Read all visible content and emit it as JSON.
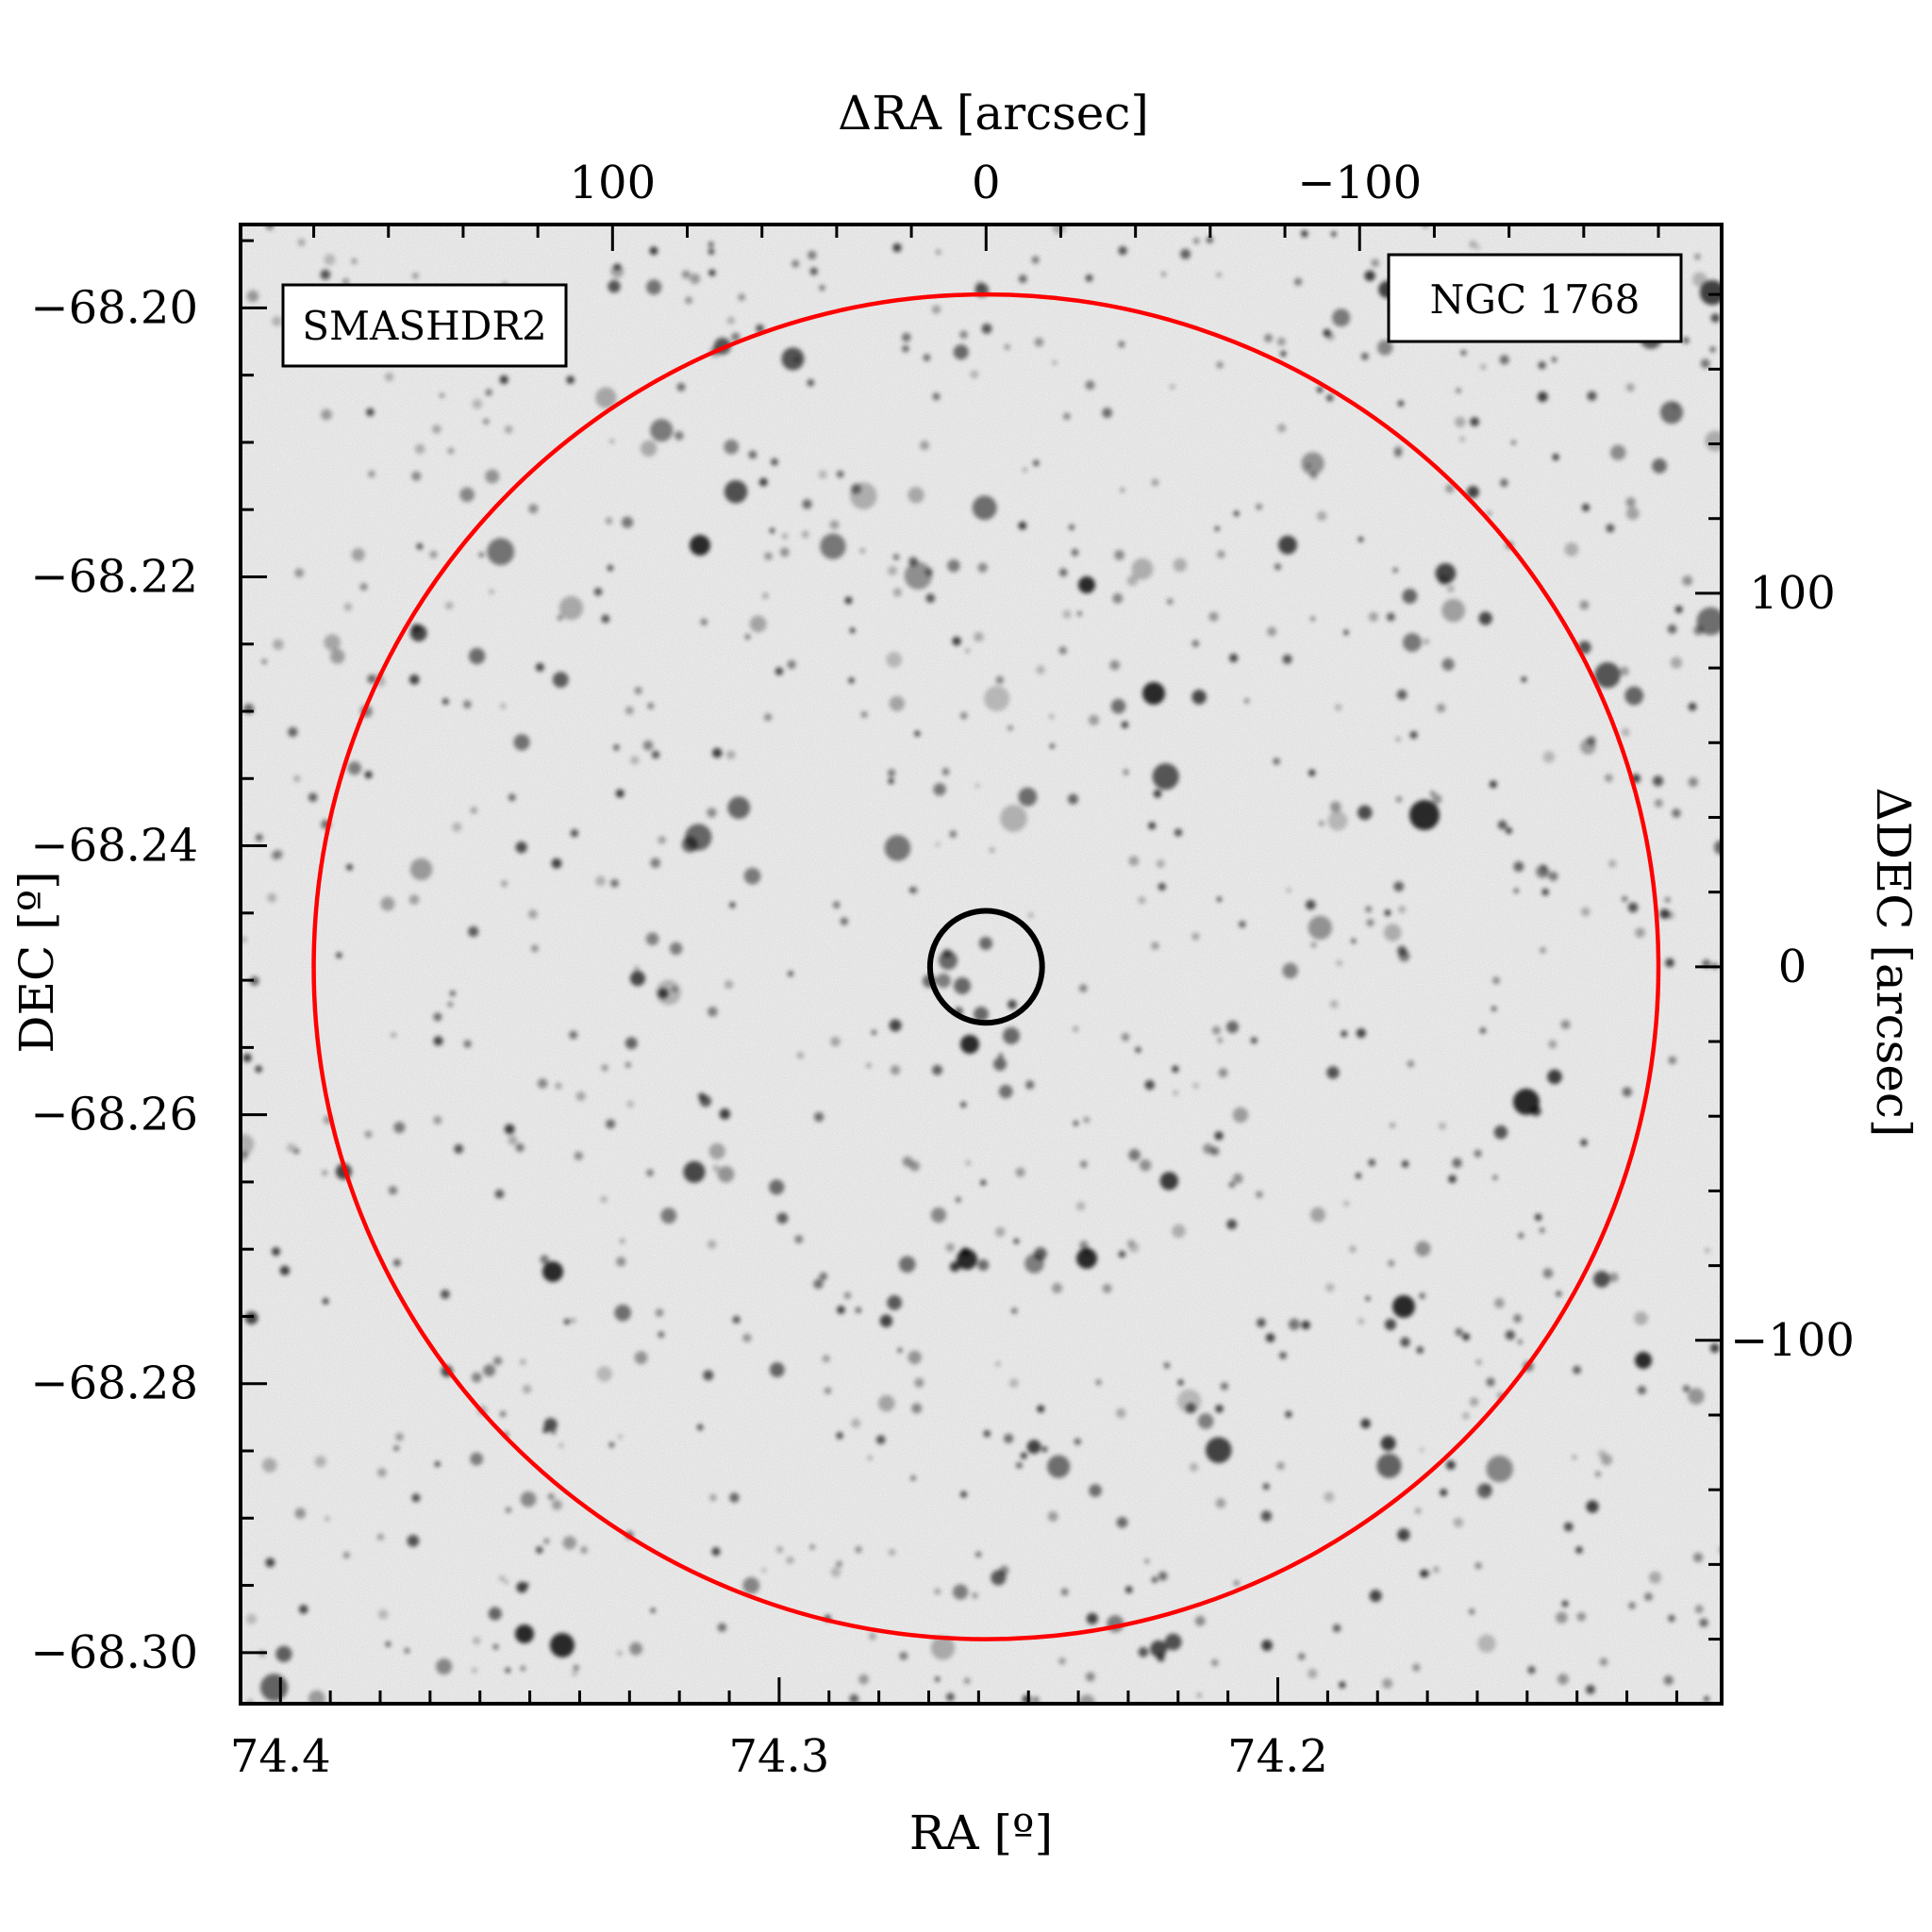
{
  "chart_data": {
    "type": "scatter",
    "title": "",
    "xlabel": "RA [º]",
    "ylabel": "DEC [º]",
    "x2label": "ΔRA [arcsec]",
    "y2label": "ΔDEC [arcsec]",
    "xlim": [
      74.408,
      74.111
    ],
    "ylim": [
      -68.3038,
      -68.1938
    ],
    "x_ticks": [
      74.4,
      74.3,
      74.2
    ],
    "x_tick_labels": [
      "74.4",
      "74.3",
      "74.2"
    ],
    "y_ticks": [
      -68.2,
      -68.22,
      -68.24,
      -68.26,
      -68.28,
      -68.3
    ],
    "y_tick_labels": [
      "−68.20",
      "−68.22",
      "−68.24",
      "−68.26",
      "−68.28",
      "−68.30"
    ],
    "x2_ticks": [
      100,
      0,
      -100
    ],
    "x2_tick_labels": [
      "100",
      "0",
      "−100"
    ],
    "y2_ticks": [
      100,
      0,
      -100
    ],
    "y2_tick_labels": [
      "100",
      "0",
      "−100"
    ],
    "center": {
      "ra": 74.2585,
      "dec": -68.249
    },
    "circles": [
      {
        "name": "outer",
        "radius_arcsec": 180,
        "color": "#ff0000"
      },
      {
        "name": "inner",
        "radius_arcsec": 15,
        "color": "#000000"
      }
    ],
    "labels": {
      "survey": "SMASHDR2",
      "object": "NGC 1768"
    },
    "colors": {
      "survey": "#ff0000",
      "object": "#000000",
      "background": "#f4f4f4"
    },
    "grid": false
  }
}
